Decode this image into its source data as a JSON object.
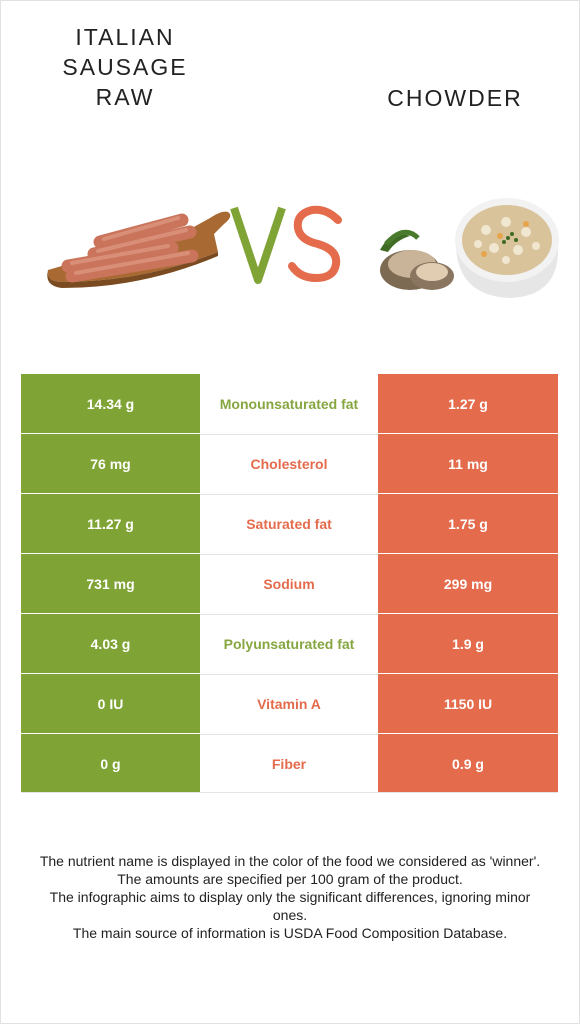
{
  "titles": {
    "left": "ITALIAN SAUSAGE RAW",
    "right": "CHOWDER"
  },
  "vs": {
    "v": "V",
    "s": "S"
  },
  "colors": {
    "left_food": "#7fa334",
    "right_food": "#e46b4c"
  },
  "nutrients": [
    {
      "name": "Monounsaturated fat",
      "left": "14.34 g",
      "right": "1.27 g",
      "winner": "left"
    },
    {
      "name": "Cholesterol",
      "left": "76 mg",
      "right": "11 mg",
      "winner": "right"
    },
    {
      "name": "Saturated fat",
      "left": "11.27 g",
      "right": "1.75 g",
      "winner": "right"
    },
    {
      "name": "Sodium",
      "left": "731 mg",
      "right": "299 mg",
      "winner": "right"
    },
    {
      "name": "Polyunsaturated fat",
      "left": "4.03 g",
      "right": "1.9 g",
      "winner": "left"
    },
    {
      "name": "Vitamin A",
      "left": "0 IU",
      "right": "1150 IU",
      "winner": "right"
    },
    {
      "name": "Fiber",
      "left": "0 g",
      "right": "0.9 g",
      "winner": "right"
    }
  ],
  "notes": [
    "The nutrient name is displayed in the color of the food we considered as 'winner'.",
    "The amounts are specified per 100 gram of the product.",
    "The infographic aims to display only the significant differences, ignoring minor ones.",
    "The main source of information is USDA Food Composition Database."
  ]
}
